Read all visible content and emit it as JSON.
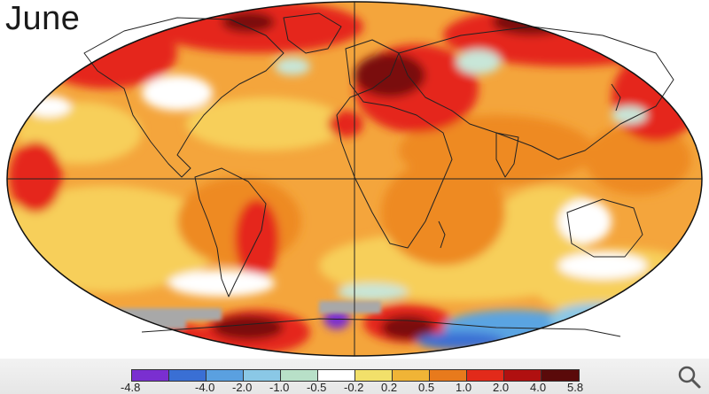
{
  "title": "June",
  "legend": {
    "ticks": [
      "-4.8",
      "-4.0",
      "-2.0",
      "-1.0",
      "-0.5",
      "-0.2",
      "0.2",
      "0.5",
      "1.0",
      "2.0",
      "4.0",
      "5.8"
    ],
    "colors": [
      "#7a2fd0",
      "#3a6fd4",
      "#5aa0e0",
      "#8ac8e6",
      "#b8e0c8",
      "#ffffff",
      "#f2e06a",
      "#f0b436",
      "#e87a1c",
      "#e22a1a",
      "#b01010",
      "#5a0a0a"
    ]
  },
  "colors": {
    "ocean_base": "#f4a53c",
    "warm_light": "#f7cf5a",
    "warm_orange": "#ee8a22",
    "warm_red": "#e5261a",
    "warm_dark": "#7a0d0d",
    "cool_light": "#c8e6d8",
    "cool_blue": "#5aa4e2",
    "no_data": "#a8a8a8",
    "frame_bar": "#e9e9e9"
  },
  "icons": {
    "zoom": "magnifier-icon"
  }
}
